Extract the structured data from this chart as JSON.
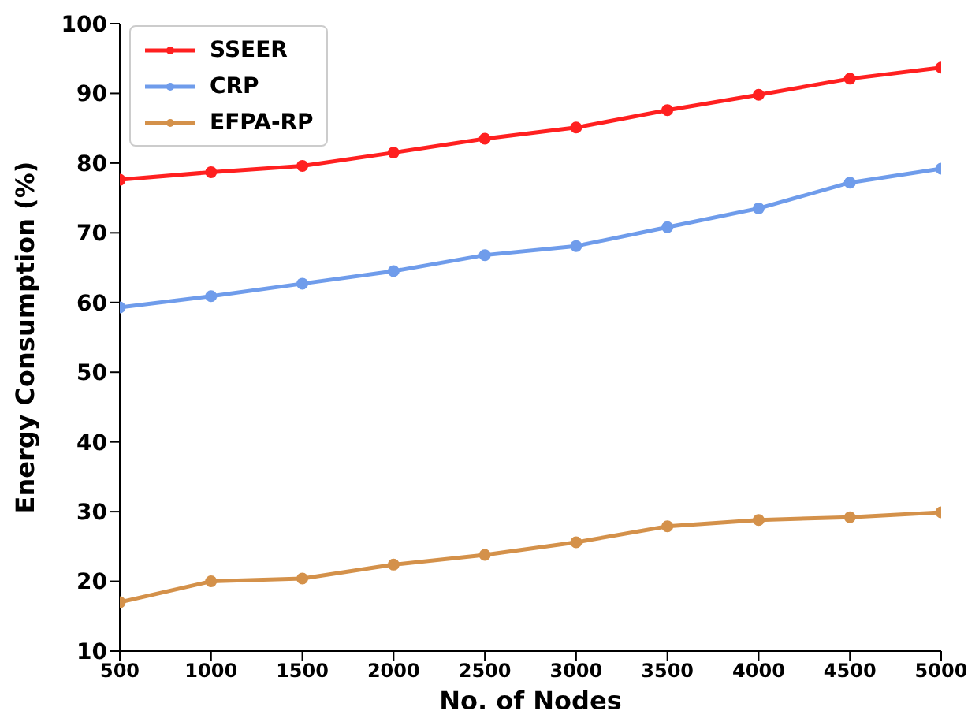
{
  "chart_data": {
    "type": "line",
    "xlabel": "No. of Nodes",
    "ylabel": "Energy Consumption (%)",
    "x": [
      500,
      1000,
      1500,
      2000,
      2500,
      3000,
      3500,
      4000,
      4500,
      5000
    ],
    "series": [
      {
        "name": "SSEER",
        "color": "#ff2020",
        "values": [
          77.6,
          78.7,
          79.6,
          81.5,
          83.5,
          85.1,
          87.6,
          89.8,
          92.1,
          93.7
        ]
      },
      {
        "name": "CRP",
        "color": "#6f9ceb",
        "values": [
          59.3,
          60.9,
          62.7,
          64.5,
          66.8,
          68.1,
          70.8,
          73.5,
          77.2,
          79.2
        ]
      },
      {
        "name": "EFPA-RP",
        "color": "#d4914a",
        "values": [
          17.0,
          20.0,
          20.4,
          22.4,
          23.8,
          25.6,
          27.9,
          28.8,
          29.2,
          29.9
        ]
      }
    ],
    "xlim": [
      500,
      5000
    ],
    "xticks": [
      500,
      1000,
      1500,
      2000,
      2500,
      3000,
      3500,
      4000,
      4500,
      5000
    ],
    "ylim": [
      10,
      100
    ],
    "yticks": [
      10,
      20,
      30,
      40,
      50,
      60,
      70,
      80,
      90,
      100
    ],
    "marker": "circle",
    "line_style": "solid",
    "legend": "top left",
    "grid": false
  }
}
